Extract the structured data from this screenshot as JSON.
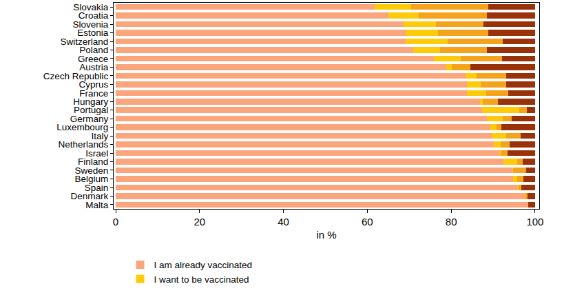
{
  "chart_data": {
    "type": "bar",
    "orientation": "horizontal",
    "stacked": true,
    "x_label": "in %",
    "categories": [
      "Slovakia",
      "Croatia",
      "Slovenia",
      "Estonia",
      "Switzerland",
      "Poland",
      "Greece",
      "Austria",
      "Czech Republic",
      "Cyprus",
      "France",
      "Hungary",
      "Portugal",
      "Germany",
      "Luxembourg",
      "Italy",
      "Netherlands",
      "Israel",
      "Finland",
      "Sweden",
      "Belgium",
      "Spain",
      "Denmark",
      "Malta"
    ],
    "series": [
      {
        "name": "I am already vaccinated",
        "color": "#fba57d",
        "values": [
          61.7,
          65.1,
          68.6,
          69.1,
          69.1,
          70.9,
          75.9,
          78.9,
          83.5,
          83.8,
          83.8,
          86.9,
          87.4,
          88.5,
          89.4,
          89.7,
          90.2,
          91.5,
          92.5,
          94.6,
          94.8,
          95.7,
          97.5,
          98.4
        ]
      },
      {
        "name": "I want to be vaccinated",
        "color": "#fdcb0a",
        "values": [
          8.8,
          7.1,
          7.7,
          7.7,
          10.1,
          6.5,
          6.4,
          1.3,
          2.6,
          3.3,
          4.6,
          0.7,
          8.8,
          3.8,
          1.4,
          3.4,
          1.6,
          0.3,
          3.2,
          0.2,
          0.9,
          0.4,
          0.2,
          0
        ]
      },
      {
        "color": "#f5a31c",
        "values": [
          18.4,
          16.3,
          11.4,
          12.1,
          13.1,
          11.1,
          9.8,
          4.4,
          7.0,
          6.0,
          5.2,
          3.6,
          1.8,
          2.1,
          1.2,
          3.5,
          2.1,
          1.7,
          1.4,
          3.1,
          1.5,
          0.6,
          0.5,
          0
        ]
      },
      {
        "color": "#9a3209",
        "values": [
          11.1,
          11.5,
          12.3,
          11.1,
          7.7,
          11.5,
          7.9,
          15.4,
          6.9,
          6.9,
          6.4,
          8.8,
          2.0,
          5.6,
          8.0,
          3.4,
          6.1,
          6.5,
          2.9,
          2.1,
          2.8,
          3.3,
          1.8,
          1.6
        ]
      }
    ],
    "xlim": [
      -0.5,
      101
    ],
    "xticks": [
      0,
      20,
      40,
      60,
      80,
      100
    ],
    "grid": false,
    "legend": "bottom"
  }
}
